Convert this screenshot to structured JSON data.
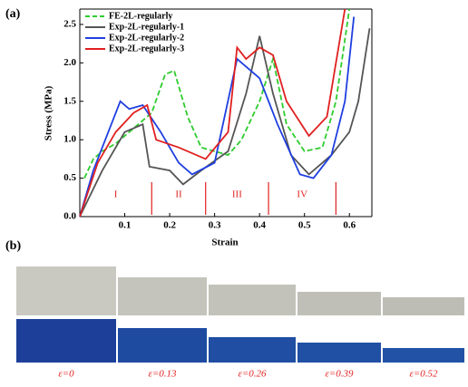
{
  "chart_data": {
    "type": "line",
    "panel_label": "(a)",
    "x_label": "Strain",
    "y_label": "Stress (MPa)",
    "xlim": [
      0,
      0.65
    ],
    "ylim": [
      0,
      2.7
    ],
    "xticks": [
      0.1,
      0.2,
      0.3,
      0.4,
      0.5,
      0.6
    ],
    "yticks": [
      {
        "value": 0,
        "label": "0.0"
      },
      0.5,
      {
        "value": 1,
        "label": "1.0"
      },
      1.5,
      {
        "value": 2,
        "label": "2.0"
      },
      2.5
    ],
    "legend": "upper left",
    "series": [
      {
        "name": "FE-2L-regularly",
        "color": "#2ecc2e",
        "dashed": true,
        "x": [
          0.01,
          0.03,
          0.05,
          0.08,
          0.12,
          0.16,
          0.19,
          0.21,
          0.24,
          0.27,
          0.3,
          0.33,
          0.36,
          0.4,
          0.43,
          0.46,
          0.5,
          0.54,
          0.57,
          0.6
        ],
        "values": [
          0.5,
          0.75,
          0.85,
          0.95,
          1.15,
          1.35,
          1.85,
          1.9,
          1.3,
          0.9,
          0.85,
          0.8,
          1.0,
          1.5,
          2.05,
          1.2,
          0.85,
          0.9,
          1.5,
          2.7
        ]
      },
      {
        "name": "Exp-2L-regularly-1",
        "color": "#555555",
        "dashed": false,
        "x": [
          0.0,
          0.05,
          0.1,
          0.14,
          0.155,
          0.2,
          0.23,
          0.27,
          0.33,
          0.37,
          0.4,
          0.43,
          0.47,
          0.51,
          0.56,
          0.6,
          0.62,
          0.645
        ],
        "values": [
          0,
          0.6,
          1.1,
          1.2,
          0.65,
          0.6,
          0.42,
          0.6,
          0.85,
          1.6,
          2.35,
          1.6,
          0.8,
          0.55,
          0.8,
          1.1,
          1.5,
          2.45
        ]
      },
      {
        "name": "Exp-2L-regularly-2",
        "color": "#1f3fe0",
        "dashed": false,
        "x": [
          0.0,
          0.03,
          0.07,
          0.09,
          0.11,
          0.14,
          0.18,
          0.22,
          0.25,
          0.3,
          0.35,
          0.4,
          0.44,
          0.49,
          0.52,
          0.56,
          0.59,
          0.61
        ],
        "values": [
          0,
          0.6,
          1.2,
          1.5,
          1.4,
          1.45,
          1.1,
          0.7,
          0.55,
          0.7,
          2.05,
          1.8,
          1.2,
          0.55,
          0.5,
          0.8,
          1.5,
          2.6
        ]
      },
      {
        "name": "Exp-2L-regularly-3",
        "color": "#e02020",
        "dashed": false,
        "x": [
          0.0,
          0.04,
          0.08,
          0.12,
          0.15,
          0.17,
          0.22,
          0.28,
          0.33,
          0.35,
          0.37,
          0.4,
          0.43,
          0.46,
          0.51,
          0.55,
          0.59
        ],
        "values": [
          0,
          0.7,
          1.1,
          1.35,
          1.45,
          1.0,
          0.9,
          0.75,
          1.1,
          2.2,
          2.05,
          2.2,
          2.1,
          1.5,
          1.05,
          1.3,
          2.7
        ]
      }
    ],
    "dividers": [
      0.16,
      0.28,
      0.42,
      0.57
    ],
    "divider_color": "#e02020",
    "region_labels": [
      "I",
      "II",
      "III",
      "IV"
    ]
  },
  "panel_b": {
    "panel_label": "(b)",
    "captions": [
      "ε=0",
      "ε=0.13",
      "ε=0.26",
      "ε=0.39",
      "ε=0.52"
    ]
  }
}
